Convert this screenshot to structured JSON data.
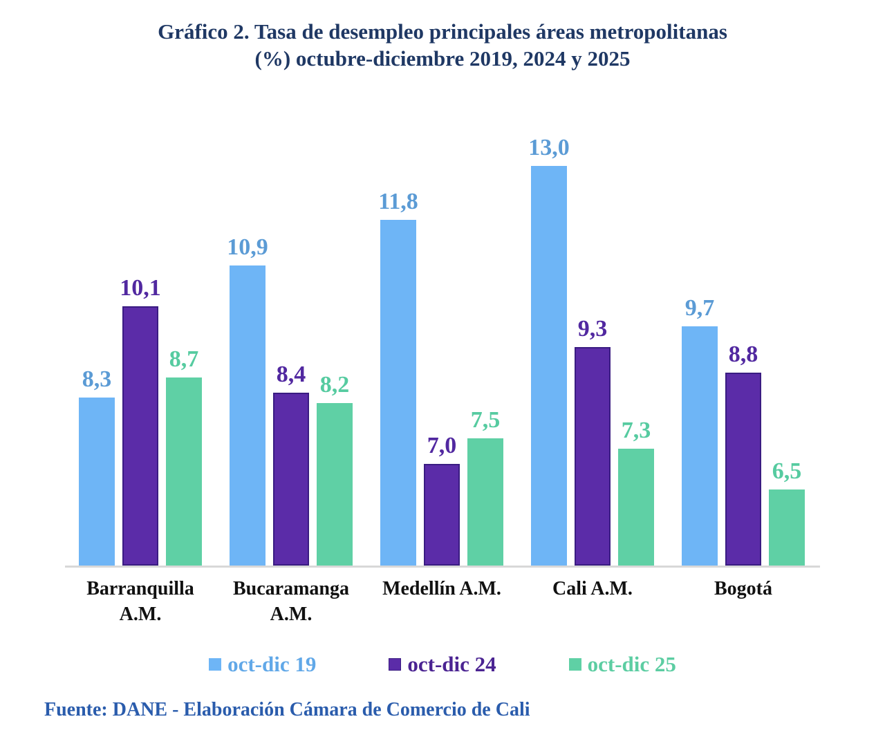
{
  "title": {
    "line1": "Gráfico 2. Tasa de desempleo principales áreas metropolitanas",
    "line2": "(%) octubre-diciembre 2019, 2024 y 2025"
  },
  "source": "Fuente: DANE - Elaboración Cámara de Comercio de Cali",
  "colors": {
    "title_text": "#1F3864",
    "source_text": "#2A5CAC",
    "axis_line": "#D8D8D8",
    "category_text": "#111111"
  },
  "chart_data": {
    "type": "bar",
    "title": "Gráfico 2. Tasa de desempleo principales áreas metropolitanas (%) octubre-diciembre 2019, 2024 y 2025",
    "categories": [
      "Barranquilla A.M.",
      "Bucaramanga A.M.",
      "Medellín A.M.",
      "Cali A.M.",
      "Bogotá"
    ],
    "categories_lines": [
      [
        "Barranquilla",
        "A.M."
      ],
      [
        "Bucaramanga",
        "A.M."
      ],
      [
        "Medellín A.M.",
        ""
      ],
      [
        "Cali A.M.",
        ""
      ],
      [
        "Bogotá",
        ""
      ]
    ],
    "series": [
      {
        "name": "oct-dic 19",
        "values": [
          8.3,
          10.9,
          11.8,
          13.0,
          9.7
        ],
        "value_labels": [
          "8,3",
          "10,9",
          "11,8",
          "13,0",
          "9,7"
        ],
        "bar_color": "#6EB5F6",
        "bar_border": "",
        "label_color": "#5B9BD5",
        "legend_text_color": "#61A8E8"
      },
      {
        "name": "oct-dic 24",
        "values": [
          10.1,
          8.4,
          7.0,
          9.3,
          8.8
        ],
        "value_labels": [
          "10,1",
          "8,4",
          "7,0",
          "9,3",
          "8,8"
        ],
        "bar_color": "#5B2CA8",
        "bar_border": "#3A1C82",
        "label_color": "#5128A0",
        "legend_text_color": "#4B2492"
      },
      {
        "name": "oct-dic 25",
        "values": [
          8.7,
          8.2,
          7.5,
          7.3,
          6.5
        ],
        "value_labels": [
          "8,7",
          "8,2",
          "7,5",
          "7,3",
          "6,5"
        ],
        "bar_color": "#5FD0A5",
        "bar_border": "",
        "label_color": "#56CBA0",
        "legend_text_color": "#5CCDA2"
      }
    ],
    "xlabel": "",
    "ylabel": "",
    "ylim": [
      5,
      13.5
    ],
    "grid": false,
    "axis_visible": false,
    "legend_position": "bottom",
    "value_decimal_separator": ","
  }
}
